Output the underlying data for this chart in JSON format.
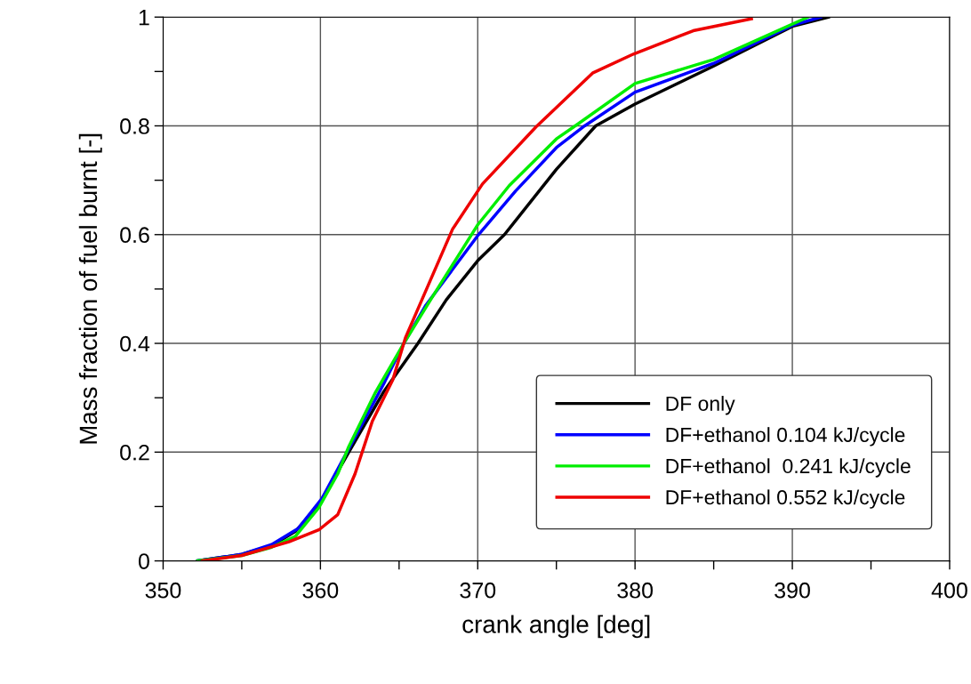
{
  "chart_data": {
    "type": "line",
    "xlabel": "crank angle [deg]",
    "ylabel": "Mass fraction of fuel burnt [-]",
    "xlim": [
      350,
      400
    ],
    "ylim": [
      0,
      1
    ],
    "xticks": [
      350,
      {
        "value": 355,
        "label": null
      },
      360,
      {
        "value": 365,
        "label": null
      },
      370,
      {
        "value": 375,
        "label": null
      },
      380,
      {
        "value": 385,
        "label": null
      },
      390,
      {
        "value": 395,
        "label": null
      },
      400
    ],
    "yticks": [
      0,
      {
        "value": 0.1,
        "label": null
      },
      0.2,
      {
        "value": 0.3,
        "label": null
      },
      0.4,
      {
        "value": 0.5,
        "label": null
      },
      0.6,
      {
        "value": 0.7,
        "label": null
      },
      0.8,
      {
        "value": 0.9,
        "label": null
      },
      1
    ],
    "grid": true,
    "legend": "bottom right",
    "line_style": "solid",
    "marker": "none",
    "series": [
      {
        "name": "DF only",
        "color": "#000000",
        "x": [
          352.2,
          355,
          356.9,
          358.4,
          359.9,
          361.8,
          364,
          366.2,
          368,
          370,
          371.7,
          375,
          377.5,
          380,
          385,
          390,
          392.3
        ],
        "values": [
          0,
          0.012,
          0.028,
          0.054,
          0.103,
          0.2,
          0.31,
          0.4,
          0.48,
          0.552,
          0.6,
          0.72,
          0.8,
          0.84,
          0.91,
          0.983,
          1
        ]
      },
      {
        "name": "DF+ethanol 0.104 kJ/cycle",
        "color": "#0000ff",
        "x": [
          352.2,
          355,
          356.9,
          358.6,
          360.1,
          361.5,
          363,
          364.1,
          365.3,
          366.7,
          370,
          372.4,
          375,
          376.8,
          380,
          385,
          390,
          391.8
        ],
        "values": [
          0,
          0.012,
          0.03,
          0.06,
          0.115,
          0.19,
          0.27,
          0.33,
          0.4,
          0.47,
          0.598,
          0.68,
          0.76,
          0.8,
          0.862,
          0.915,
          0.985,
          1
        ]
      },
      {
        "name": "DF+ethanol  0.241 kJ/cycle",
        "color": "#00ee00",
        "x": [
          352.2,
          355,
          356.9,
          358.4,
          359.9,
          361.1,
          361.8,
          363.5,
          365.3,
          367,
          370,
          372,
          375,
          376.2,
          380,
          385,
          391
        ],
        "values": [
          0,
          0.01,
          0.025,
          0.045,
          0.098,
          0.16,
          0.21,
          0.31,
          0.4,
          0.48,
          0.618,
          0.69,
          0.776,
          0.8,
          0.878,
          0.922,
          1
        ]
      },
      {
        "name": "DF+ethanol 0.552 kJ/cycle",
        "color": "#ee0000",
        "x": [
          352.5,
          355,
          358,
          359.9,
          361.1,
          362.2,
          363.3,
          364.6,
          365.4,
          368.4,
          370.3,
          373.7,
          377.3,
          379.9,
          383.7,
          387.4
        ],
        "values": [
          0,
          0.01,
          0.035,
          0.057,
          0.085,
          0.16,
          0.257,
          0.333,
          0.41,
          0.61,
          0.693,
          0.798,
          0.897,
          0.932,
          0.975,
          0.997
        ]
      }
    ]
  }
}
